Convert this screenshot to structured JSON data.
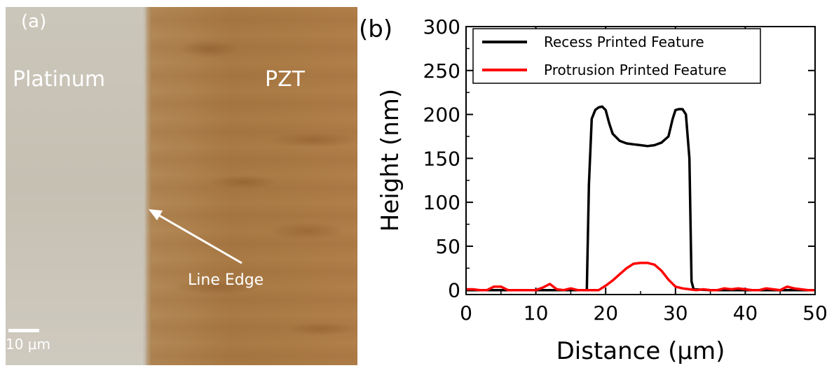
{
  "panel_a": {
    "label": "(a)",
    "platinum_label": "Platinum",
    "pzt_label": "PZT",
    "edge_label": "Line Edge",
    "scale_label": "10 μm"
  },
  "panel_b": {
    "label": "(b)"
  },
  "chart_data": {
    "type": "line",
    "xlabel": "Distance (μm)",
    "ylabel": "Height (nm)",
    "xlim": [
      0,
      50
    ],
    "ylim": [
      -5,
      300
    ],
    "xticks": [
      0,
      10,
      20,
      30,
      40,
      50
    ],
    "yticks": [
      0,
      50,
      100,
      150,
      200,
      250,
      300
    ],
    "legend_position": "top-left",
    "series": [
      {
        "name": "Recess Printed Feature",
        "color": "#000000",
        "x": [
          0,
          5,
          10,
          15,
          17.3,
          17.6,
          18.0,
          18.5,
          19.0,
          19.5,
          20.0,
          20.5,
          21.0,
          22.0,
          23.0,
          24.0,
          25.0,
          26.0,
          27.0,
          28.0,
          29.0,
          29.6,
          30.0,
          30.5,
          31.0,
          31.5,
          32.0,
          32.3,
          32.6,
          35,
          40,
          45,
          50
        ],
        "y": [
          0,
          0,
          0,
          0,
          0,
          120,
          195,
          205,
          208,
          209,
          205,
          190,
          178,
          170,
          167,
          166,
          165,
          164,
          165,
          168,
          175,
          195,
          205,
          206,
          206,
          200,
          150,
          10,
          1,
          0,
          0,
          0,
          0
        ]
      },
      {
        "name": "Protrusion Printed Feature",
        "color": "#ff0000",
        "x": [
          0,
          1,
          2,
          3,
          4,
          5,
          6,
          7,
          8,
          9,
          10,
          11,
          12,
          13,
          14,
          15,
          16,
          17,
          18,
          19,
          20,
          21,
          22,
          23,
          24,
          25,
          26,
          27,
          28,
          29,
          30,
          31,
          32,
          33,
          34,
          35,
          36,
          37,
          38,
          39,
          40,
          41,
          42,
          43,
          44,
          45,
          46,
          47,
          48,
          49,
          50
        ],
        "y": [
          1,
          1,
          0,
          0,
          4,
          4,
          0,
          0,
          0,
          0,
          0,
          3,
          7,
          1,
          0,
          2,
          0,
          0,
          0,
          0,
          5,
          11,
          18,
          25,
          30,
          31,
          31,
          29,
          22,
          12,
          4,
          2,
          1,
          0,
          1,
          0,
          0,
          2,
          1,
          2,
          1,
          0,
          0,
          2,
          1,
          0,
          4,
          2,
          1,
          0,
          0
        ]
      }
    ]
  }
}
